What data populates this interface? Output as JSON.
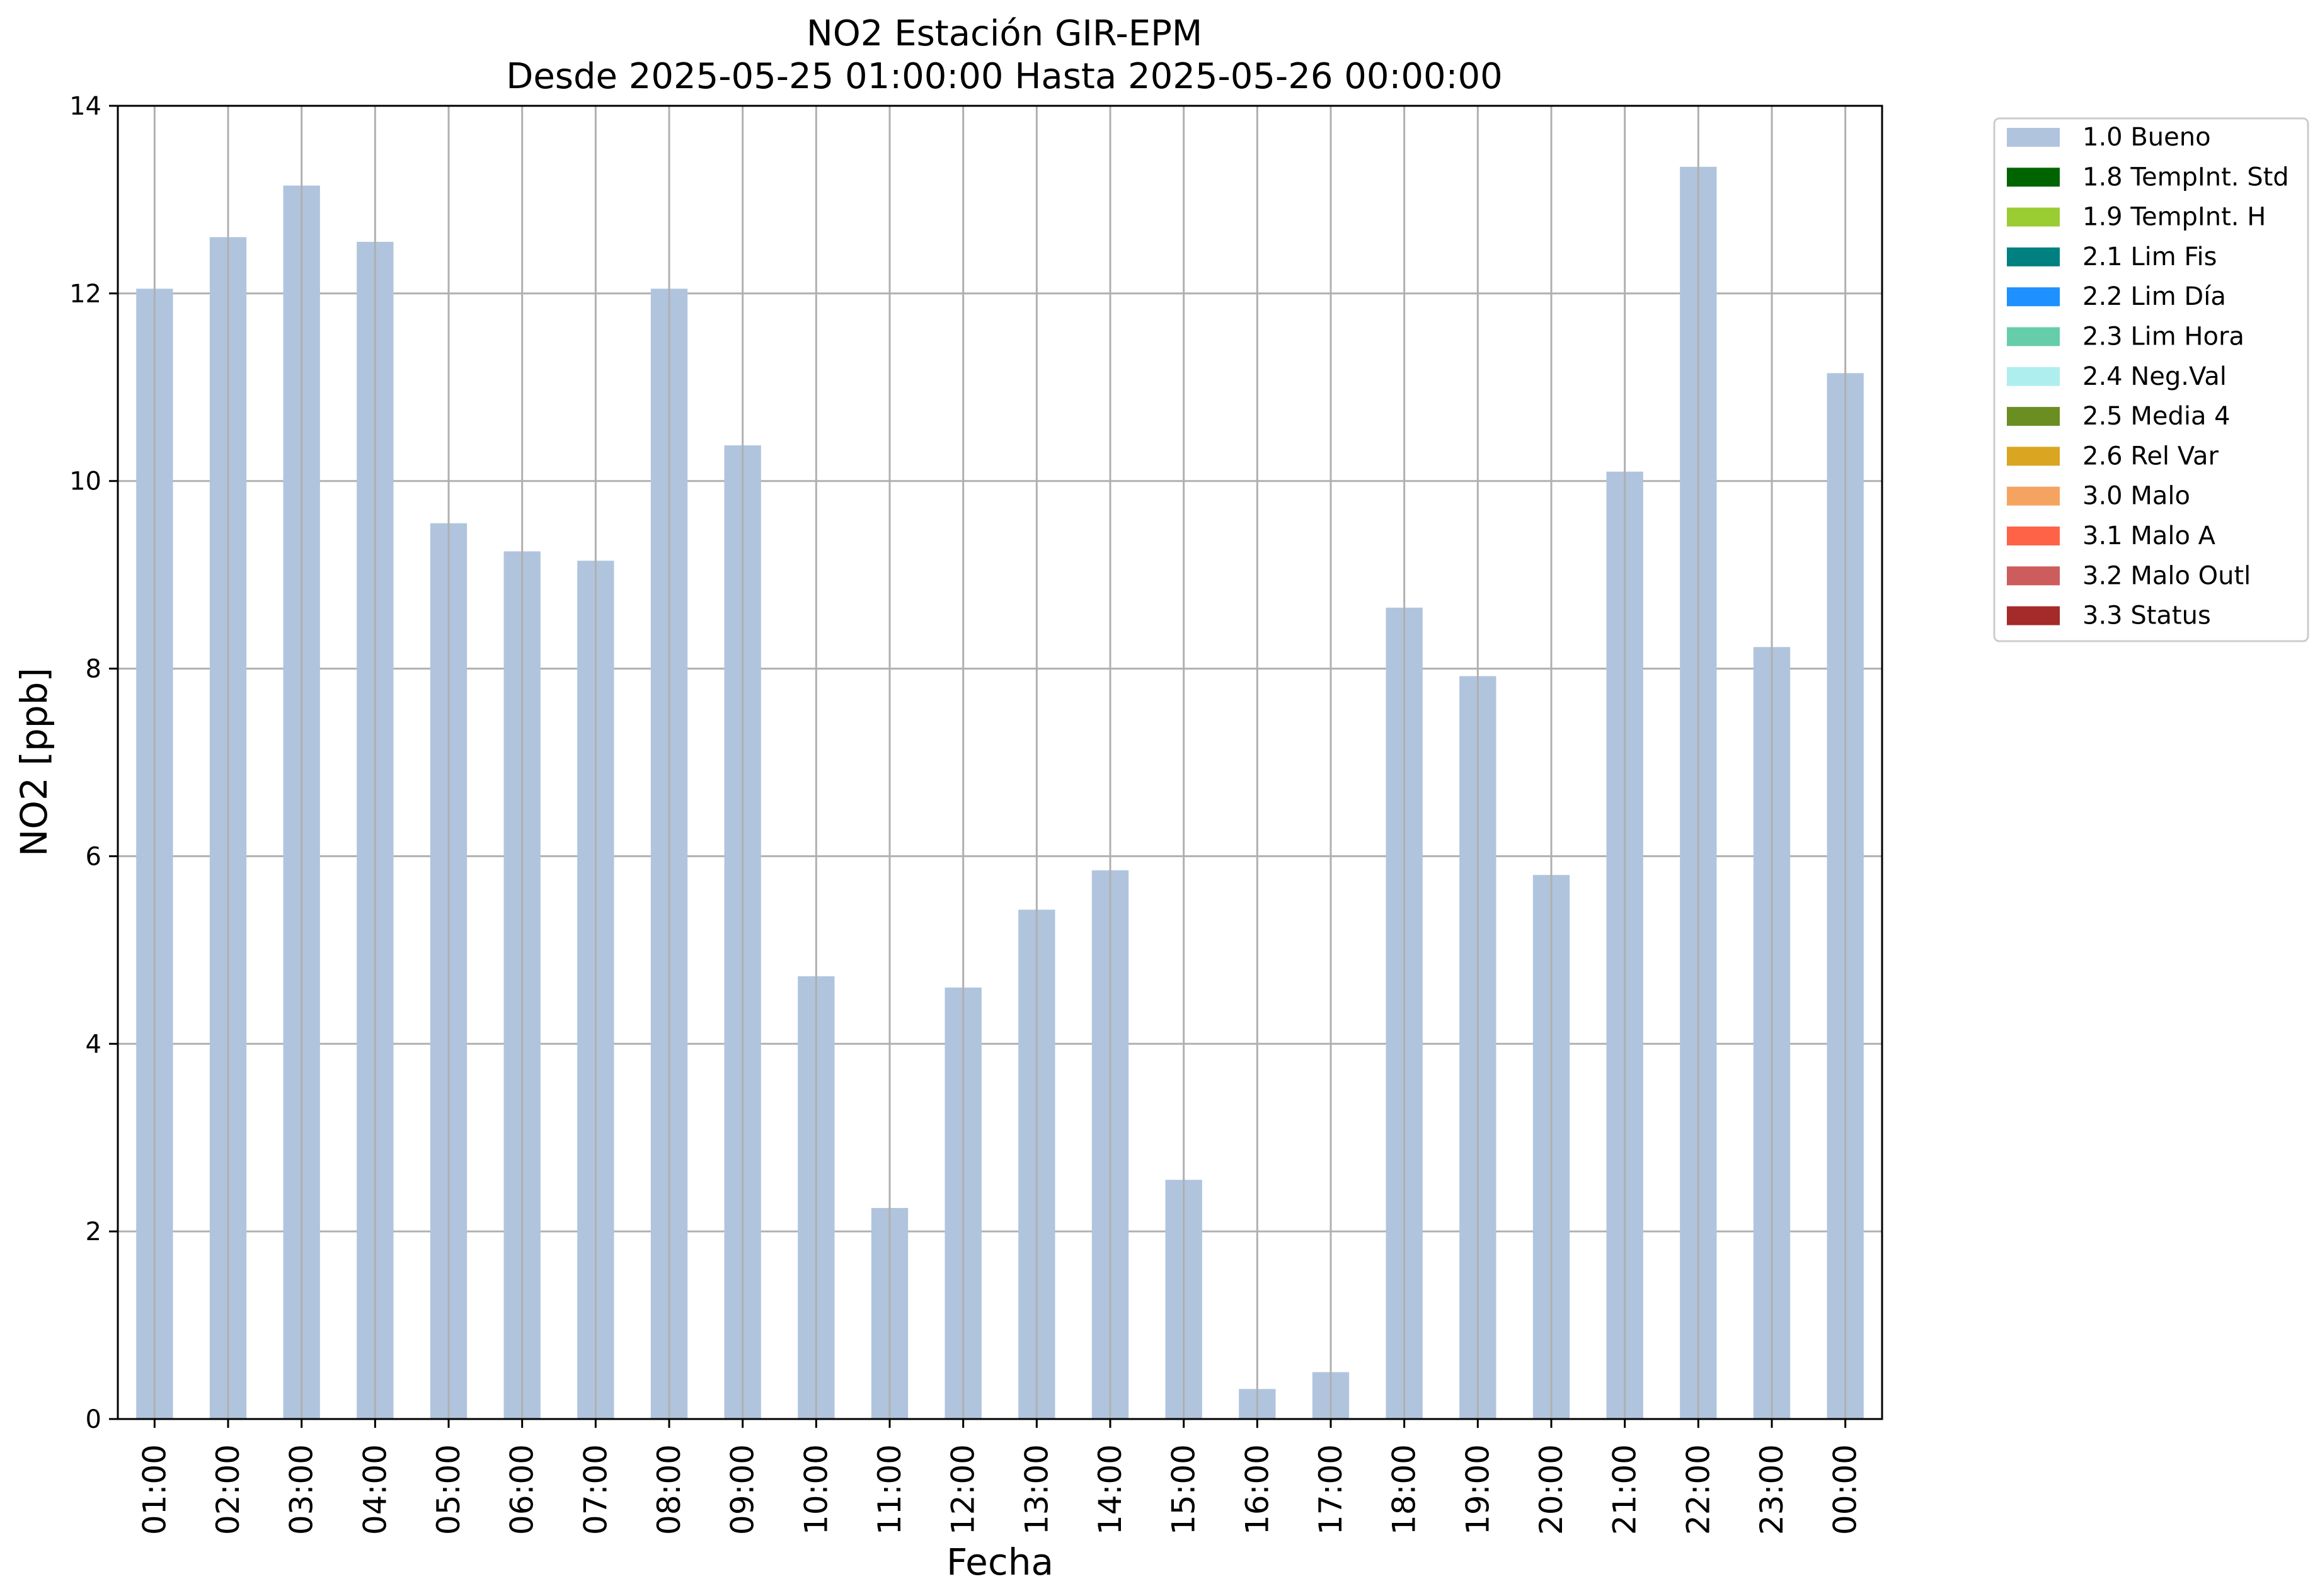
{
  "chart_data": {
    "type": "bar",
    "title": "NO2 Estación GIR-EPM",
    "subtitle": "Desde 2025-05-25 01:00:00 Hasta 2025-05-26 00:00:00",
    "xlabel": "Fecha",
    "ylabel": "NO2 [ppb]",
    "ylim": [
      0,
      14
    ],
    "yticks": [
      0,
      2,
      4,
      6,
      8,
      10,
      12,
      14
    ],
    "grid": true,
    "legend_position": "outside-right-top",
    "categories": [
      "01:00",
      "02:00",
      "03:00",
      "04:00",
      "05:00",
      "06:00",
      "07:00",
      "08:00",
      "09:00",
      "10:00",
      "11:00",
      "12:00",
      "13:00",
      "14:00",
      "15:00",
      "16:00",
      "17:00",
      "18:00",
      "19:00",
      "20:00",
      "21:00",
      "22:00",
      "23:00",
      "00:00"
    ],
    "series": [
      {
        "name": "1.0 Bueno",
        "color": "#b0c4de",
        "values": [
          12.05,
          12.6,
          13.15,
          12.55,
          9.55,
          9.25,
          9.15,
          12.05,
          10.38,
          4.72,
          2.25,
          4.6,
          5.43,
          5.85,
          2.55,
          0.32,
          0.5,
          8.65,
          7.92,
          5.8,
          10.1,
          13.35,
          8.23,
          11.15
        ]
      }
    ],
    "legend": [
      {
        "label": "1.0 Bueno",
        "color": "#b0c4de"
      },
      {
        "label": "1.8 TempInt. Std",
        "color": "#006400"
      },
      {
        "label": "1.9 TempInt. H",
        "color": "#9acd32"
      },
      {
        "label": "2.1 Lim Fis",
        "color": "#008080"
      },
      {
        "label": "2.2 Lim Día",
        "color": "#1e90ff"
      },
      {
        "label": "2.3 Lim Hora",
        "color": "#66cdaa"
      },
      {
        "label": "2.4 Neg.Val",
        "color": "#afeeee"
      },
      {
        "label": "2.5 Media 4",
        "color": "#6b8e23"
      },
      {
        "label": "2.6 Rel Var",
        "color": "#daa520"
      },
      {
        "label": "3.0 Malo",
        "color": "#f4a460"
      },
      {
        "label": "3.1 Malo A",
        "color": "#ff6347"
      },
      {
        "label": "3.2 Malo Outl",
        "color": "#cd5c5c"
      },
      {
        "label": "3.3 Status",
        "color": "#a52a2a"
      }
    ]
  }
}
